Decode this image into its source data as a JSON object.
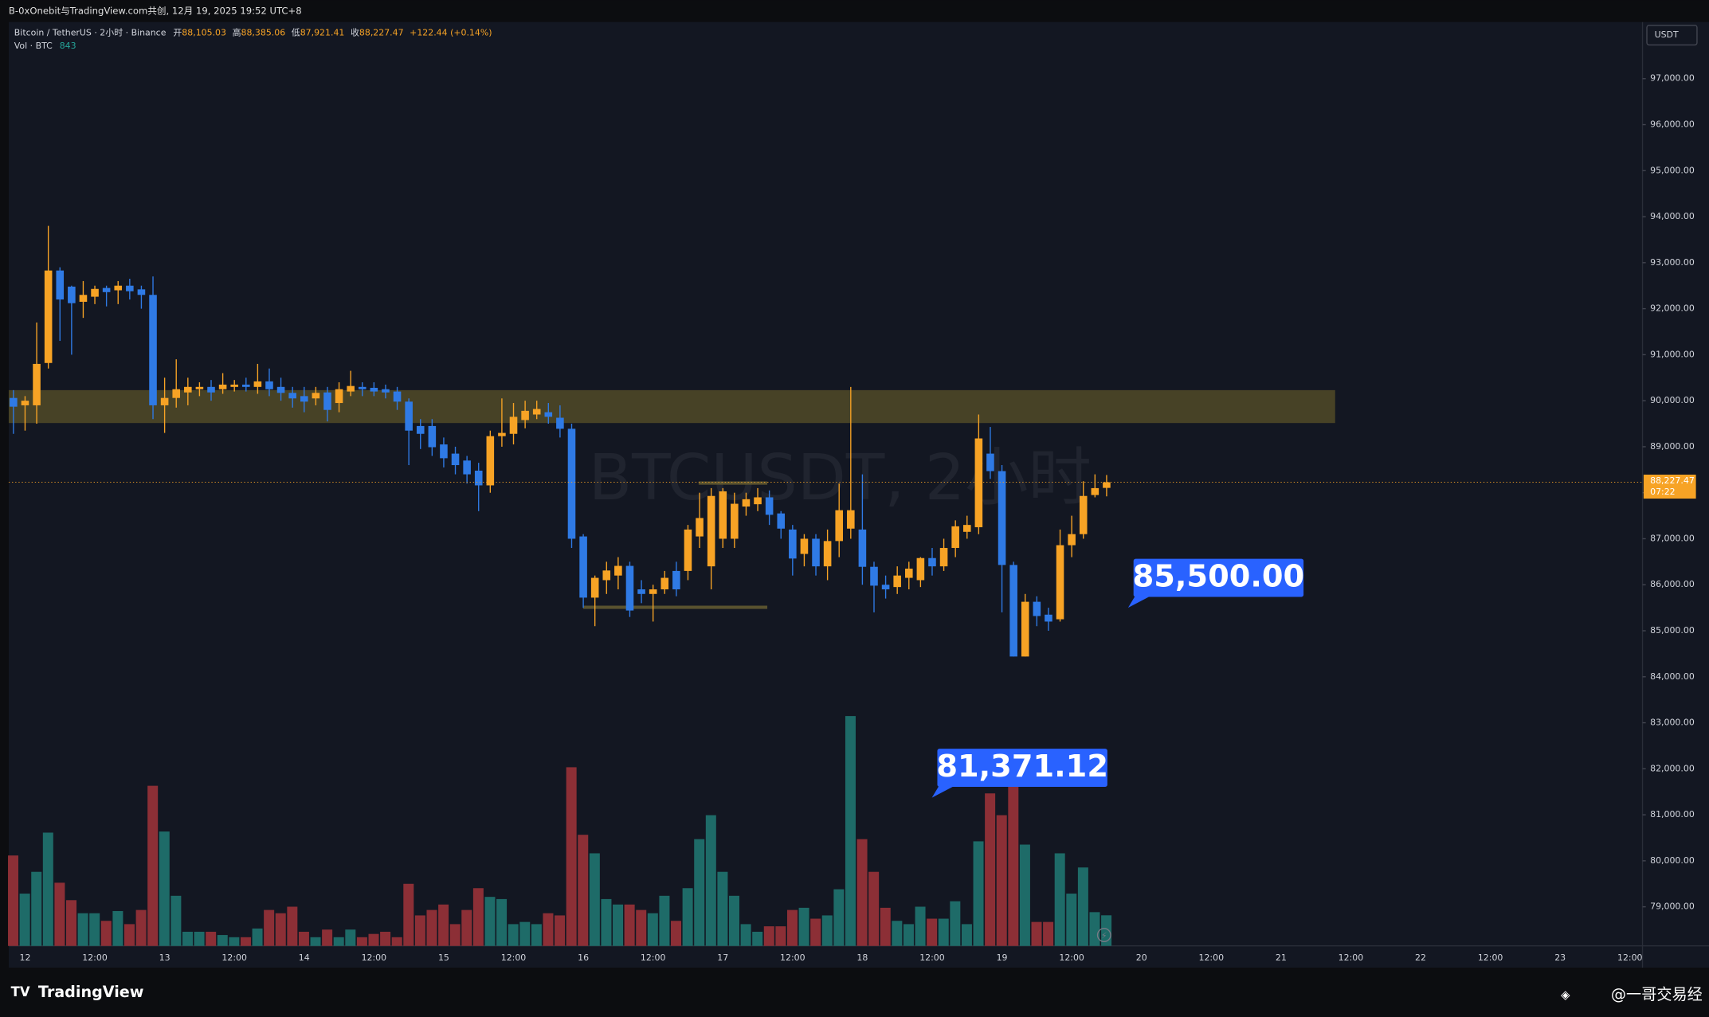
{
  "header": {
    "text": "B-0xOnebit与TradingView.com共创, 12月 19, 2025 19:52 UTC+8"
  },
  "chart_data": {
    "type": "candlestick",
    "symbol": "Bitcoin / TetherUS · 2小时 · Binance",
    "ohlc_names": {
      "open": "开",
      "high": "高",
      "low": "低",
      "close": "收"
    },
    "last_bar_labels": {
      "open": "88,105.03",
      "high": "88,385.06",
      "low": "87,921.41",
      "close": "88,227.47"
    },
    "change": "+122.44 (+0.14%)",
    "volume_title": "Vol · BTC",
    "price_unit": "USDT",
    "last_price_label": "88,227.47",
    "countdown": "07:22",
    "watermark": "BTCUSDT, 2小时",
    "up_color": "#f7a325",
    "down_color": "#2f7ae5",
    "volume_up_color": "#1e6b68",
    "volume_down_color": "#8c2f36",
    "grid": false,
    "ylim": [
      78150,
      98230
    ],
    "yticks": [
      {
        "value": 79000,
        "label": "79,000.00"
      },
      {
        "value": 80000,
        "label": "80,000.00"
      },
      {
        "value": 81000,
        "label": "81,000.00"
      },
      {
        "value": 82000,
        "label": "82,000.00"
      },
      {
        "value": 83000,
        "label": "83,000.00"
      },
      {
        "value": 84000,
        "label": "84,000.00"
      },
      {
        "value": 85000,
        "label": "85,000.00"
      },
      {
        "value": 86000,
        "label": "86,000.00"
      },
      {
        "value": 87000,
        "label": "87,000.00"
      },
      {
        "value": 88000,
        "label": "88,000.00"
      },
      {
        "value": 89000,
        "label": "89,000.00"
      },
      {
        "value": 90000,
        "label": "90,000.00"
      },
      {
        "value": 91000,
        "label": "91,000.00"
      },
      {
        "value": 92000,
        "label": "92,000.00"
      },
      {
        "value": 93000,
        "label": "93,000.00"
      },
      {
        "value": 94000,
        "label": "94,000.00"
      },
      {
        "value": 95000,
        "label": "95,000.00"
      },
      {
        "value": 96000,
        "label": "96,000.00"
      },
      {
        "value": 97000,
        "label": "97,000.00"
      }
    ],
    "zone": {
      "low": 89515,
      "high": 90230
    },
    "levels": [
      88210,
      85510
    ],
    "callouts": [
      {
        "value": 85500,
        "label": "85,500.00"
      },
      {
        "value": 81371.12,
        "label": "81,371.12"
      }
    ],
    "categories": [
      null,
      "12",
      null,
      null,
      null,
      null,
      null,
      "12:00",
      null,
      null,
      null,
      null,
      null,
      "13",
      null,
      null,
      null,
      null,
      null,
      "12:00",
      null,
      null,
      null,
      null,
      null,
      "14",
      null,
      null,
      null,
      null,
      null,
      "12:00",
      null,
      null,
      null,
      null,
      null,
      "15",
      null,
      null,
      null,
      null,
      null,
      "12:00",
      null,
      null,
      null,
      null,
      null,
      "16",
      null,
      null,
      null,
      null,
      null,
      "12:00",
      null,
      null,
      null,
      null,
      null,
      "17",
      null,
      null,
      null,
      null,
      null,
      "12:00",
      null,
      null,
      null,
      null,
      null,
      "18",
      null,
      null,
      null,
      null,
      null,
      "12:00",
      null,
      null,
      null,
      null,
      null,
      "19",
      null,
      null,
      null,
      null,
      null,
      "12:00",
      null,
      null,
      null,
      null,
      null,
      "20",
      null,
      null,
      null,
      null,
      null,
      "12:00",
      null,
      null,
      null,
      null,
      null,
      "21",
      null,
      null,
      null,
      null,
      null,
      "12:00",
      null,
      null,
      null,
      null,
      null,
      "22",
      null,
      null,
      null,
      null,
      null,
      "12:00",
      null,
      null,
      null,
      null,
      null,
      "23",
      null,
      null,
      null,
      null,
      null,
      "12:00"
    ],
    "open": [
      90060,
      89900,
      89900,
      90820,
      92830,
      92480,
      92150,
      92260,
      92450,
      92400,
      92500,
      92420,
      92300,
      89900,
      90060,
      90180,
      90250,
      90300,
      90250,
      90300,
      90350,
      90300,
      90420,
      90300,
      90170,
      90100,
      90050,
      90180,
      89950,
      90200,
      90300,
      90280,
      90250,
      90200,
      89980,
      89450,
      89450,
      89050,
      88850,
      88700,
      88480,
      88160,
      89230,
      89280,
      89580,
      89700,
      89750,
      89630,
      89390,
      87050,
      85720,
      86100,
      86200,
      86410,
      85900,
      85800,
      85900,
      86300,
      86300,
      87050,
      86400,
      87000,
      87000,
      87700,
      87750,
      87900,
      87550,
      87200,
      86670,
      87000,
      86400,
      86950,
      87220,
      87200,
      86390,
      86000,
      85950,
      86150,
      86100,
      86580,
      86400,
      86800,
      87150,
      87250,
      88850,
      88470,
      86430,
      84440,
      85630,
      85350,
      85250,
      86860,
      87100,
      87950,
      88105.03,
      null,
      null,
      null,
      null,
      null,
      null,
      null,
      null,
      null,
      null,
      null,
      null,
      null,
      null,
      null,
      null,
      null,
      null,
      null,
      null,
      null,
      null,
      null,
      null,
      null,
      null,
      null,
      null,
      null,
      null,
      null,
      null,
      null,
      null,
      null,
      null,
      null,
      null,
      null,
      null,
      null,
      null,
      null,
      null,
      null
    ],
    "high": [
      90230,
      90100,
      91700,
      93800,
      92900,
      92500,
      92600,
      92500,
      92500,
      92600,
      92650,
      92500,
      92700,
      90500,
      90900,
      90500,
      90400,
      90450,
      90600,
      90450,
      90500,
      90800,
      90700,
      90500,
      90300,
      90300,
      90300,
      90300,
      90400,
      90650,
      90400,
      90400,
      90350,
      90300,
      90050,
      89600,
      89600,
      89200,
      89000,
      88800,
      88650,
      89350,
      90050,
      89950,
      90000,
      90000,
      89950,
      89900,
      89500,
      87100,
      86200,
      86500,
      86600,
      86500,
      86100,
      86000,
      86300,
      86500,
      87300,
      88000,
      88100,
      88100,
      88000,
      88000,
      88100,
      88050,
      87600,
      87300,
      87100,
      87100,
      87200,
      88200,
      90300,
      88400,
      86500,
      86200,
      86400,
      86500,
      86600,
      86800,
      87000,
      87400,
      87500,
      89700,
      89430,
      88600,
      86500,
      85800,
      85750,
      85500,
      87200,
      87500,
      88250,
      88400,
      88385.06,
      null,
      null,
      null,
      null,
      null,
      null,
      null,
      null,
      null,
      null,
      null,
      null,
      null,
      null,
      null,
      null,
      null,
      null,
      null,
      null,
      null,
      null,
      null,
      null,
      null,
      null,
      null,
      null,
      null,
      null,
      null,
      null,
      null,
      null,
      null,
      null,
      null,
      null,
      null,
      null,
      null,
      null,
      null,
      null,
      null
    ],
    "low": [
      89280,
      89350,
      89500,
      90700,
      91300,
      91000,
      91800,
      92100,
      92050,
      92100,
      92200,
      92000,
      89600,
      89300,
      89850,
      89900,
      90100,
      90000,
      90150,
      90200,
      90200,
      90150,
      90100,
      90000,
      89850,
      89750,
      89900,
      89550,
      89750,
      90100,
      90100,
      90100,
      90050,
      89800,
      88600,
      88950,
      88800,
      88550,
      88400,
      88200,
      87600,
      88000,
      89000,
      89050,
      89400,
      89600,
      89500,
      89200,
      86800,
      85500,
      85100,
      85800,
      85900,
      85300,
      85600,
      85200,
      85800,
      85750,
      86100,
      86800,
      85900,
      86800,
      86800,
      87500,
      87600,
      87300,
      87000,
      86200,
      86400,
      86200,
      86100,
      86600,
      87000,
      86000,
      85400,
      85700,
      85800,
      85900,
      85950,
      86200,
      86300,
      86600,
      87000,
      87100,
      88300,
      85400,
      84440,
      84440,
      85100,
      85000,
      85200,
      86600,
      87000,
      87900,
      87921.41,
      null,
      null,
      null,
      null,
      null,
      null,
      null,
      null,
      null,
      null,
      null,
      null,
      null,
      null,
      null,
      null,
      null,
      null,
      null,
      null,
      null,
      null,
      null,
      null,
      null,
      null,
      null,
      null,
      null,
      null,
      null,
      null,
      null,
      null,
      null,
      null,
      null,
      null,
      null,
      null,
      null,
      null,
      null,
      null,
      null
    ],
    "close": [
      89870,
      90000,
      90800,
      92830,
      92200,
      92120,
      92300,
      92430,
      92360,
      92500,
      92380,
      92300,
      89900,
      90060,
      90250,
      90300,
      90300,
      90180,
      90350,
      90350,
      90300,
      90420,
      90250,
      90170,
      90050,
      89980,
      90170,
      89800,
      90250,
      90320,
      90250,
      90200,
      90180,
      89980,
      89350,
      89280,
      88990,
      88750,
      88600,
      88400,
      88160,
      89230,
      89300,
      89650,
      89780,
      89820,
      89650,
      89390,
      87000,
      85720,
      86150,
      86310,
      86410,
      85440,
      85800,
      85900,
      86150,
      85900,
      87200,
      87450,
      87930,
      88030,
      87760,
      87860,
      87900,
      87520,
      87220,
      86570,
      87000,
      86400,
      86950,
      87620,
      87620,
      86390,
      85980,
      85900,
      86200,
      86350,
      86580,
      86400,
      86800,
      87270,
      87300,
      89180,
      88470,
      86430,
      84440,
      85630,
      85320,
      85200,
      86860,
      87100,
      87930,
      88100,
      88227.47,
      null,
      null,
      null,
      null,
      null,
      null,
      null,
      null,
      null,
      null,
      null,
      null,
      null,
      null,
      null,
      null,
      null,
      null,
      null,
      null,
      null,
      null,
      null,
      null,
      null,
      null,
      null,
      null,
      null,
      null,
      null,
      null,
      null,
      null,
      null,
      null,
      null,
      null,
      null,
      null,
      null,
      null,
      null,
      null,
      null
    ],
    "volume": [
      2490,
      1440,
      2040,
      3120,
      1740,
      1260,
      900,
      900,
      690,
      960,
      600,
      990,
      4410,
      3150,
      1380,
      390,
      390,
      390,
      300,
      240,
      240,
      480,
      990,
      900,
      1080,
      390,
      240,
      450,
      240,
      450,
      240,
      330,
      390,
      240,
      1710,
      840,
      990,
      1140,
      600,
      990,
      1590,
      1350,
      1290,
      600,
      660,
      600,
      900,
      840,
      4920,
      3060,
      2550,
      1290,
      1140,
      1140,
      990,
      900,
      1380,
      690,
      1590,
      2940,
      3600,
      2040,
      1380,
      600,
      390,
      540,
      540,
      990,
      1050,
      750,
      840,
      1560,
      6330,
      2940,
      2040,
      1050,
      690,
      600,
      1080,
      750,
      750,
      1230,
      600,
      2880,
      4200,
      3600,
      4440,
      2790,
      660,
      660,
      2550,
      1440,
      2160,
      930,
      843,
      null,
      null,
      null,
      null,
      null,
      null,
      null,
      null,
      null,
      null,
      null,
      null,
      null,
      null,
      null,
      null,
      null,
      null,
      null,
      null,
      null,
      null,
      null,
      null,
      null,
      null,
      null,
      null,
      null,
      null,
      null,
      null,
      null,
      null,
      null,
      null,
      null,
      null,
      null,
      null,
      null,
      null,
      null,
      null,
      null
    ]
  },
  "footer": {
    "brand": "TradingView",
    "credit": "@一哥交易经"
  }
}
